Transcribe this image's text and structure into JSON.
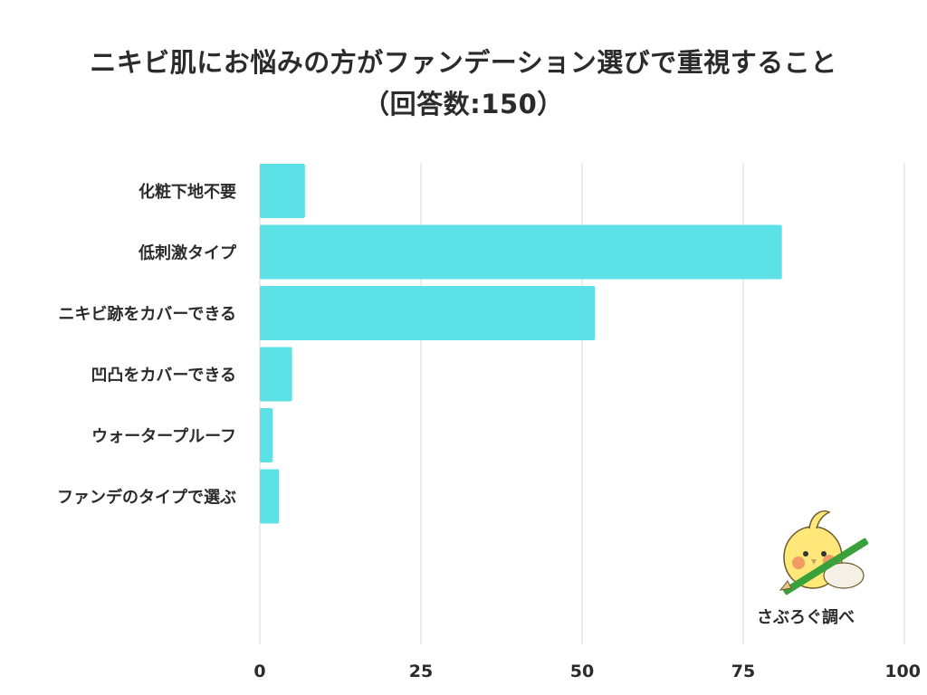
{
  "title_line1": "ニキビ肌にお悩みの方がファンデーション選びで重視すること",
  "title_line2": "（回答数:150）",
  "brand_label": "さぶろぐ調べ",
  "mascot_icon": "cockatiel-with-pencil-icon",
  "colors": {
    "bar": "#5ce1e6",
    "grid": "#d9d9d9",
    "text": "#2b2b2b"
  },
  "chart_data": {
    "type": "bar",
    "orientation": "horizontal",
    "title": "ニキビ肌にお悩みの方がファンデーション選びで重視すること（回答数:150）",
    "categories": [
      "化粧下地不要",
      "低刺激タイプ",
      "ニキビ跡をカバーできる",
      "凹凸をカバーできる",
      "ウォータープルーフ",
      "ファンデのタイプで選ぶ"
    ],
    "values": [
      7,
      81,
      52,
      5,
      2,
      3
    ],
    "xlim": [
      0,
      100
    ],
    "xticks": [
      0,
      25,
      50,
      75,
      100
    ],
    "grid": true,
    "xlabel": "",
    "ylabel": ""
  }
}
